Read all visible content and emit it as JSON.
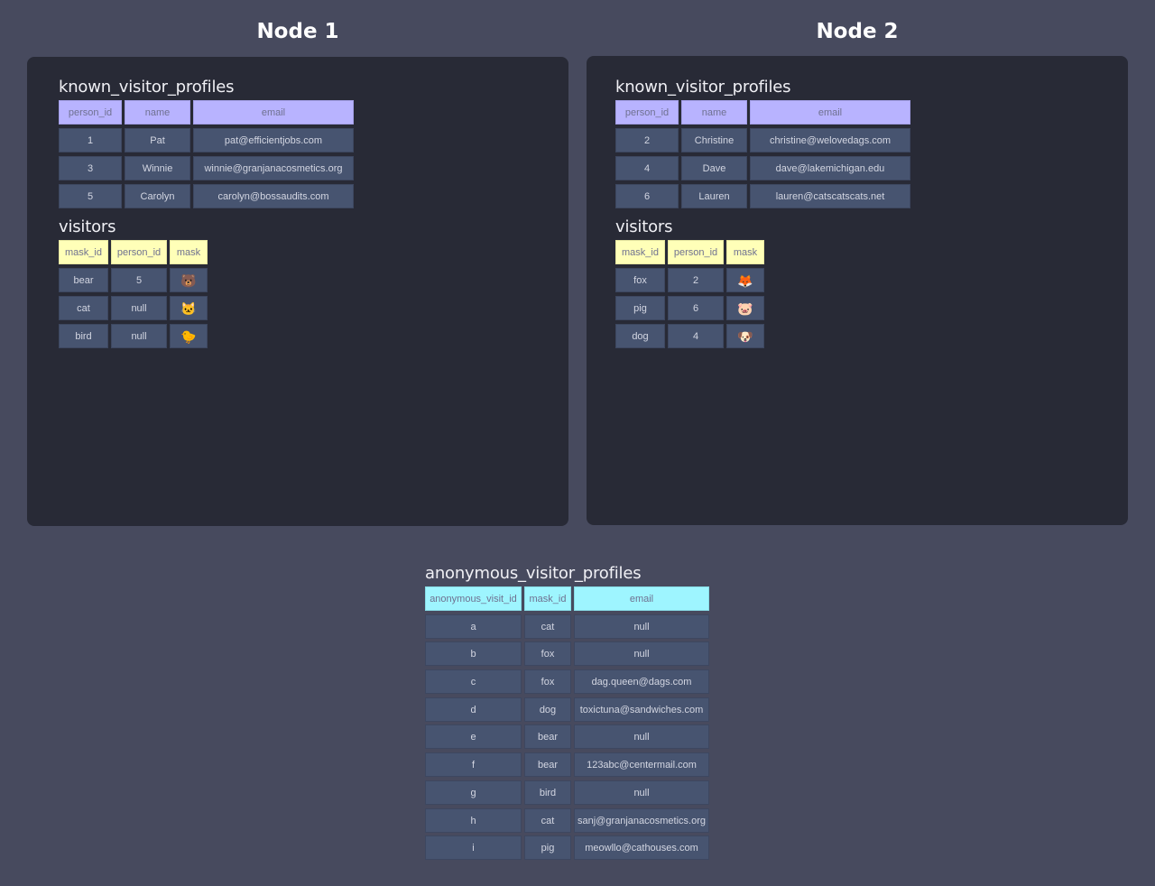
{
  "colors": {
    "background": "#474a5e",
    "panel": "#282a36",
    "cell": "#475470",
    "known_header": "#b8b3ff",
    "visitors_header": "#ffffb8",
    "anonymous_header": "#9ef5ff"
  },
  "nodes": [
    {
      "title": "Node 1",
      "known_visitor_profiles": {
        "name": "known_visitor_profiles",
        "columns": [
          "person_id",
          "name",
          "email"
        ],
        "rows": [
          [
            "1",
            "Pat",
            "pat@efficientjobs.com"
          ],
          [
            "3",
            "Winnie",
            "winnie@granjanacosmetics.org"
          ],
          [
            "5",
            "Carolyn",
            "carolyn@bossaudits.com"
          ]
        ]
      },
      "visitors": {
        "name": "visitors",
        "columns": [
          "mask_id",
          "person_id",
          "mask"
        ],
        "rows": [
          [
            "bear",
            "5",
            "🐻"
          ],
          [
            "cat",
            "null",
            "🐱"
          ],
          [
            "bird",
            "null",
            "🐤"
          ]
        ]
      }
    },
    {
      "title": "Node 2",
      "known_visitor_profiles": {
        "name": "known_visitor_profiles",
        "columns": [
          "person_id",
          "name",
          "email"
        ],
        "rows": [
          [
            "2",
            "Christine",
            "christine@welovedags.com"
          ],
          [
            "4",
            "Dave",
            "dave@lakemichigan.edu"
          ],
          [
            "6",
            "Lauren",
            "lauren@catscatscats.net"
          ]
        ]
      },
      "visitors": {
        "name": "visitors",
        "columns": [
          "mask_id",
          "person_id",
          "mask"
        ],
        "rows": [
          [
            "fox",
            "2",
            "🦊"
          ],
          [
            "pig",
            "6",
            "🐷"
          ],
          [
            "dog",
            "4",
            "🐶"
          ]
        ]
      }
    }
  ],
  "anonymous_visitor_profiles": {
    "name": "anonymous_visitor_profiles",
    "columns": [
      "anonymous_visit_id",
      "mask_id",
      "email"
    ],
    "rows": [
      [
        "a",
        "cat",
        "null"
      ],
      [
        "b",
        "fox",
        "null"
      ],
      [
        "c",
        "fox",
        "dag.queen@dags.com"
      ],
      [
        "d",
        "dog",
        "toxictuna@sandwiches.com"
      ],
      [
        "e",
        "bear",
        "null"
      ],
      [
        "f",
        "bear",
        "123abc@centermail.com"
      ],
      [
        "g",
        "bird",
        "null"
      ],
      [
        "h",
        "cat",
        "sanj@granjanacosmetics.org"
      ],
      [
        "i",
        "pig",
        "meowllo@cathouses.com"
      ]
    ]
  }
}
